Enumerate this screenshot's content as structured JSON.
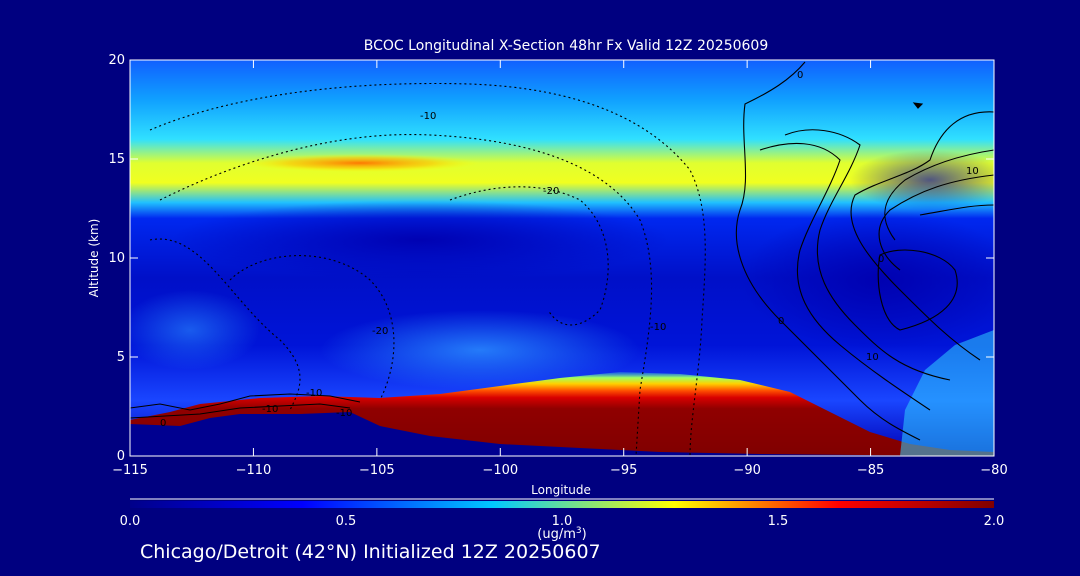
{
  "chart_data": {
    "type": "heatmap",
    "title": "BCOC Longitudinal X-Section 48hr  Fx Valid 12Z 20250609",
    "xlabel": "Longitude",
    "ylabel": "Altitude (km)",
    "xlim": [
      -115,
      -80
    ],
    "ylim": [
      0,
      20
    ],
    "x_ticks": [
      -115,
      -110,
      -105,
      -100,
      -95,
      -90,
      -85,
      -80
    ],
    "y_ticks": [
      0,
      5,
      10,
      15,
      20
    ],
    "colorbar": {
      "min": 0.0,
      "max": 2.0,
      "ticks": [
        0.0,
        0.5,
        1.0,
        1.5,
        2.0
      ],
      "tick_labels": [
        "0.0",
        "0.5",
        "1.0",
        "1.5",
        "2.0"
      ],
      "unit_label": "(ug/m",
      "unit_superscript": "3",
      "unit_suffix": ")",
      "colormap": [
        "#00008a",
        "#0000ff",
        "#00c8ff",
        "#ffff00",
        "#ff0000",
        "#800000"
      ]
    },
    "contour_labels": [
      "-10",
      "-20",
      "-20",
      "-10",
      "-10",
      "0",
      "0",
      "0",
      "10",
      "10",
      "0",
      "-10",
      "-10"
    ]
  },
  "footer": "Chicago/Detroit (42°N) Initialized 12Z 20250607",
  "colors": {
    "background": "#000080",
    "text": "#ffffff",
    "contour": "#000000"
  }
}
